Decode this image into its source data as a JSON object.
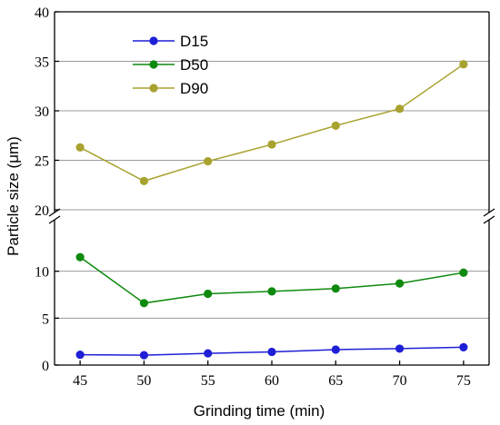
{
  "chart_data": {
    "type": "line",
    "xlabel": "Grinding time (min)",
    "ylabel": "Particle size (μm)",
    "x": [
      45,
      50,
      55,
      60,
      65,
      70,
      75
    ],
    "x_ticks": [
      "45",
      "50",
      "55",
      "60",
      "65",
      "70",
      "75"
    ],
    "xlim": [
      43,
      77
    ],
    "y_broken_axis": true,
    "y_lower_range": [
      0,
      15
    ],
    "y_upper_range": [
      20,
      40
    ],
    "y_lower_ticks": [
      "0",
      "5",
      "10"
    ],
    "y_upper_ticks": [
      "20",
      "25",
      "30",
      "35",
      "40"
    ],
    "grid": "horizontal",
    "legend_position": "top-left",
    "series": [
      {
        "name": "D15",
        "color": "#1f1fd6",
        "values": [
          1.1,
          1.05,
          1.25,
          1.4,
          1.65,
          1.75,
          1.9
        ]
      },
      {
        "name": "D50",
        "color": "#0e8a0e",
        "values": [
          11.5,
          6.6,
          7.6,
          7.85,
          8.15,
          8.7,
          9.85
        ]
      },
      {
        "name": "D90",
        "color": "#a8a22e",
        "values": [
          26.3,
          22.9,
          24.9,
          26.6,
          28.5,
          30.2,
          34.7
        ]
      }
    ]
  }
}
